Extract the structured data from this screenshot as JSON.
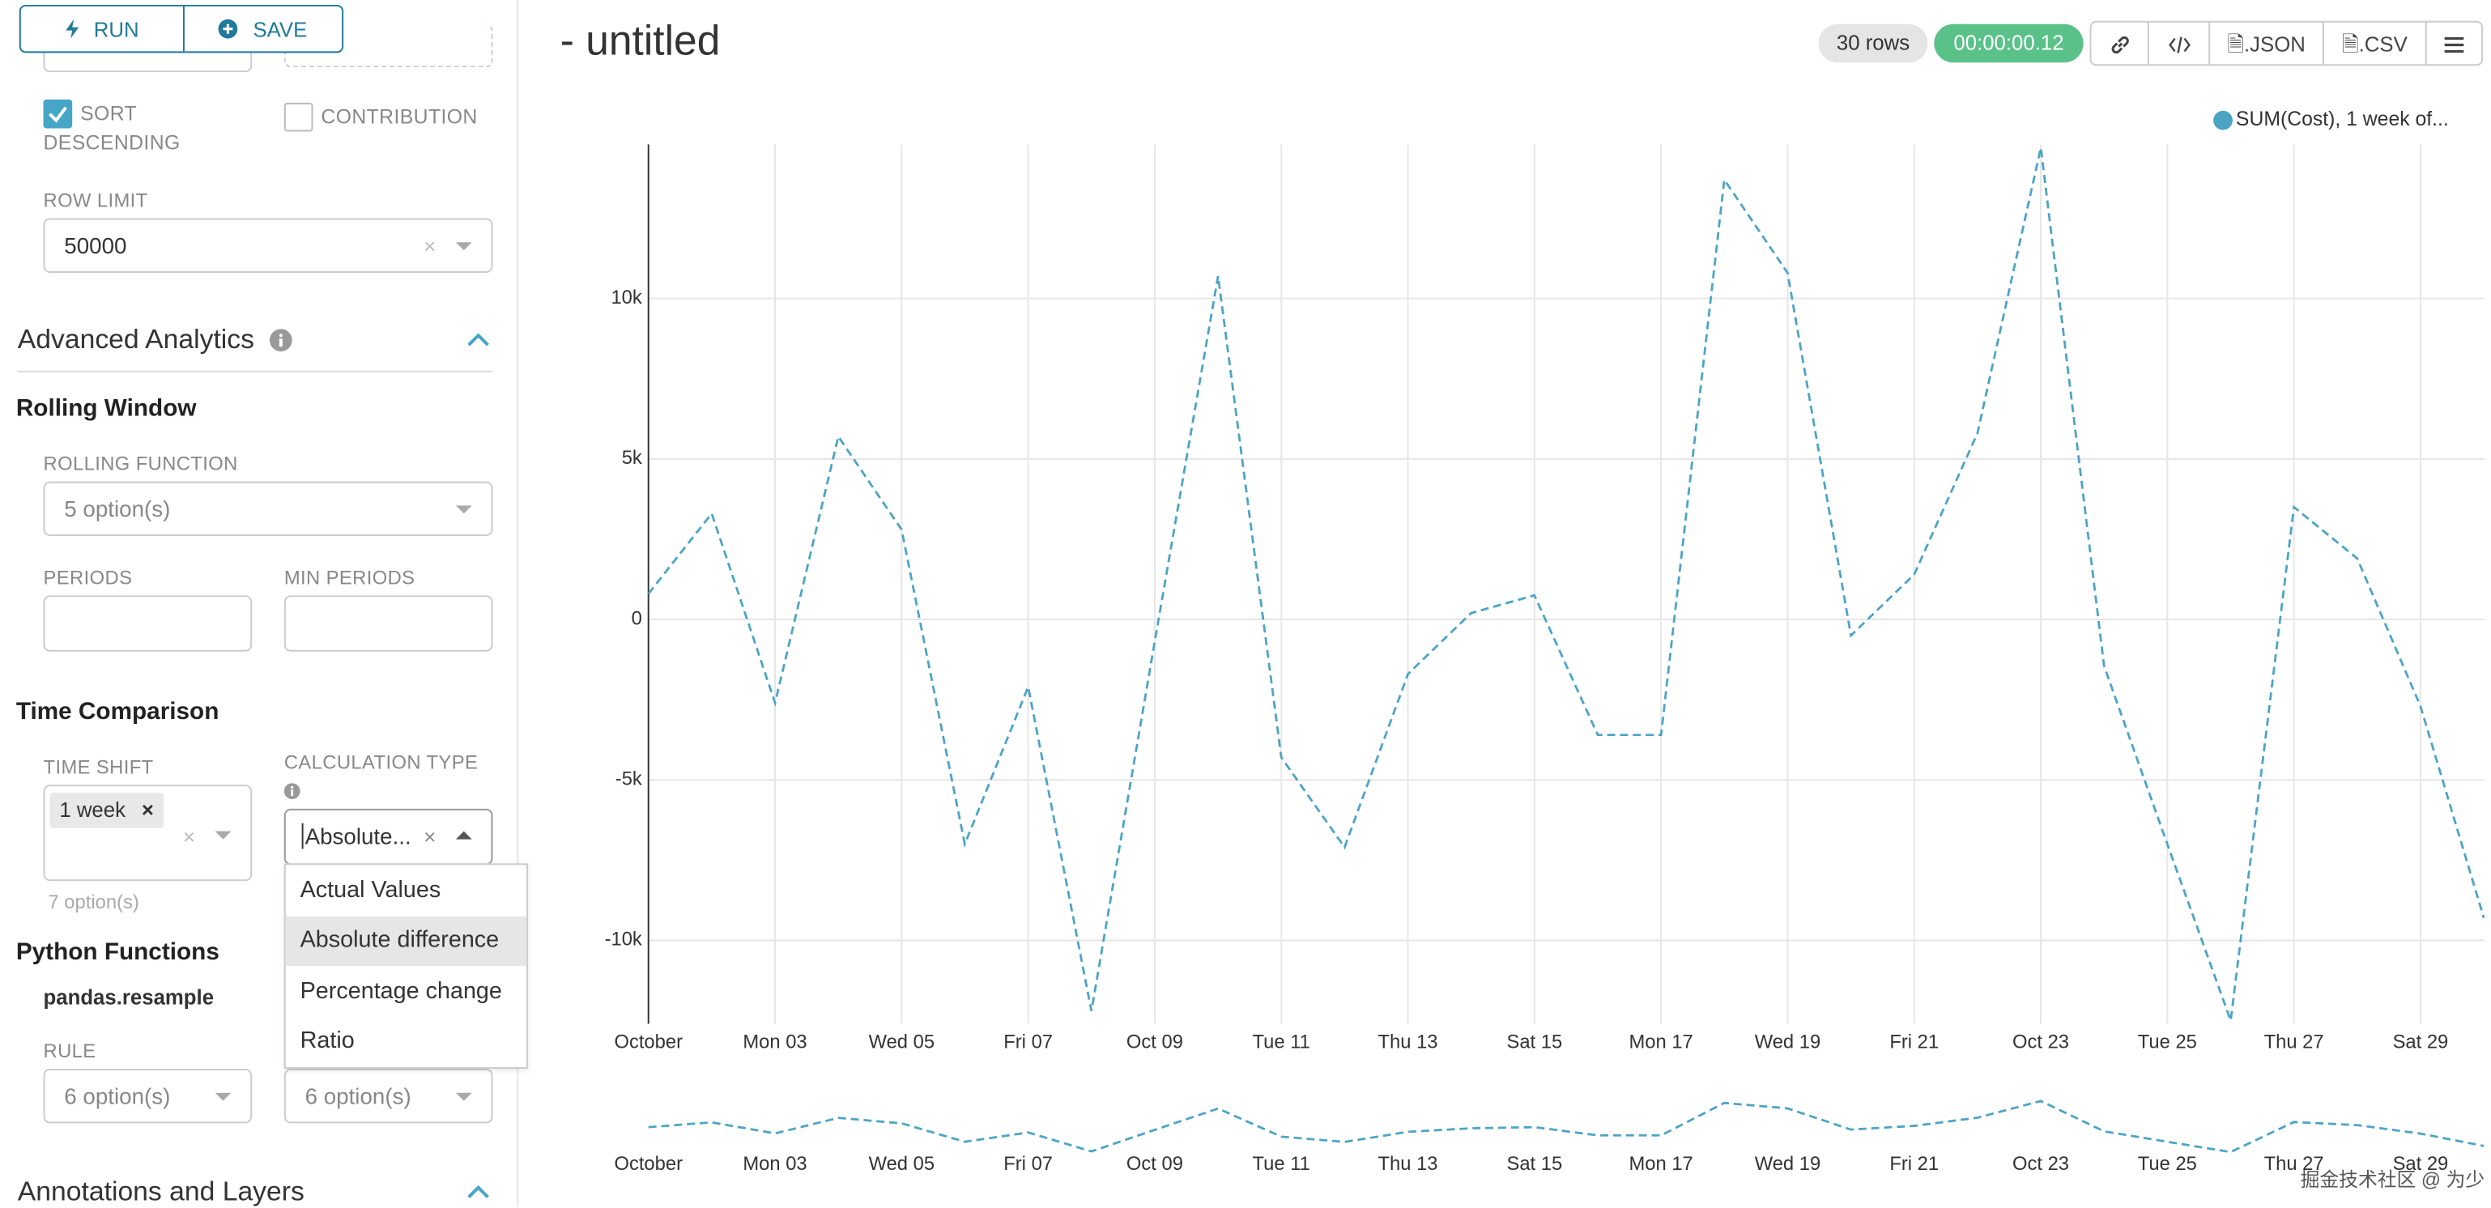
{
  "chart_data": {
    "type": "line",
    "categories": [
      "October",
      null,
      "Mon 03",
      null,
      "Wed 05",
      null,
      "Fri 07",
      null,
      "Oct 09",
      null,
      "Tue 11",
      null,
      "Thu 13",
      null,
      "Sat 15",
      null,
      "Mon 17",
      null,
      "Wed 19",
      null,
      "Fri 21",
      null,
      "Oct 23",
      null,
      "Tue 25",
      null,
      "Thu 27",
      null,
      "Sat 29",
      null
    ],
    "series": [
      {
        "name": "SUM(Cost), 1 week of...",
        "color": "#4ba4c6",
        "values": [
          800,
          3300,
          -2600,
          5700,
          2800,
          -7000,
          -2100,
          -12200,
          -700,
          10700,
          -4300,
          -7100,
          -1700,
          200,
          750,
          -3600,
          -3600,
          13700,
          10800,
          -500,
          1400,
          5800,
          14700,
          -1450,
          -7000,
          -12500,
          3500,
          1900,
          -2700,
          -9300
        ]
      }
    ],
    "ylim": [
      -12600,
      14800
    ],
    "yticks": [
      {
        "value": -10000,
        "label": "-10k"
      },
      {
        "value": -5000,
        "label": "-5k"
      },
      0,
      {
        "value": 5000,
        "label": "5k"
      },
      {
        "value": 10000,
        "label": "10k"
      }
    ],
    "grid": true,
    "legend": "top-right"
  },
  "header": {
    "title": "- untitled",
    "rows": "30 rows",
    "time": "00:00:00.12",
    "json": ".JSON",
    "csv": ".CSV"
  },
  "ui": {
    "buttons": {
      "run": "RUN",
      "save": "SAVE"
    },
    "sort_descending": "SORT DESCENDING",
    "contribution": "CONTRIBUTION",
    "row_limit": {
      "label": "ROW LIMIT",
      "value": "50000"
    },
    "advanced_analytics": "Advanced Analytics",
    "rolling_window": "Rolling Window",
    "rolling_function": {
      "label": "ROLLING FUNCTION",
      "value": "5 option(s)"
    },
    "periods": "PERIODS",
    "min_periods": "MIN PERIODS",
    "time_comparison": "Time Comparison",
    "time_shift": {
      "label": "TIME SHIFT",
      "tag": "1 week",
      "hint": "7 option(s)"
    },
    "calculation_type": {
      "label": "CALCULATION TYPE",
      "value": "Absolute...",
      "options": [
        "Actual Values",
        "Absolute difference",
        "Percentage change",
        "Ratio"
      ]
    },
    "python_functions": "Python Functions",
    "pandas_resample": "pandas.resample",
    "rule": {
      "label": "RULE",
      "values": [
        "6 option(s)",
        "6 option(s)"
      ]
    },
    "annotations_and_layers": "Annotations and Layers"
  },
  "watermark": "掘金技术社区 @ 为少"
}
